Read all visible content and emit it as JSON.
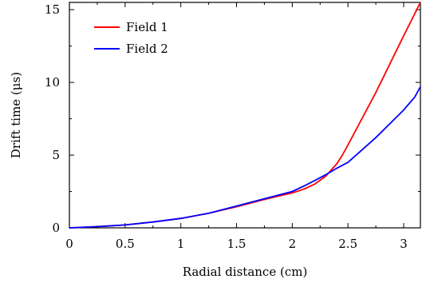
{
  "chart_data": {
    "type": "line",
    "xlabel": "Radial distance (cm)",
    "ylabel": "Drift time (μs)",
    "xlim": [
      0,
      3.15
    ],
    "ylim": [
      0,
      15.5
    ],
    "xticks": [
      "0",
      "0.5",
      "1",
      "1.5",
      "2",
      "2.5",
      "3"
    ],
    "yticks": [
      "0",
      "5",
      "10",
      "15"
    ],
    "xtick_values": [
      0,
      0.5,
      1,
      1.5,
      2,
      2.5,
      3
    ],
    "ytick_values": [
      0,
      5,
      10,
      15
    ],
    "grid": false,
    "legend_position": "top-left",
    "series": [
      {
        "name": "Field 1",
        "color": "#ff0000",
        "x": [
          0,
          0.25,
          0.5,
          0.75,
          1.0,
          1.25,
          1.5,
          1.75,
          2.0,
          2.1,
          2.2,
          2.3,
          2.4,
          2.45,
          2.5,
          2.75,
          3.0,
          3.15
        ],
        "y": [
          0,
          0.08,
          0.2,
          0.4,
          0.65,
          1.0,
          1.45,
          1.95,
          2.4,
          2.65,
          3.0,
          3.55,
          4.4,
          5.0,
          5.7,
          9.3,
          13.2,
          15.5
        ]
      },
      {
        "name": "Field 2",
        "color": "#0000ff",
        "x": [
          0,
          0.25,
          0.5,
          0.75,
          1.0,
          1.25,
          1.5,
          1.75,
          2.0,
          2.1,
          2.2,
          2.3,
          2.4,
          2.5,
          2.75,
          3.0,
          3.1,
          3.15
        ],
        "y": [
          0,
          0.08,
          0.2,
          0.4,
          0.65,
          1.0,
          1.5,
          2.0,
          2.5,
          2.85,
          3.25,
          3.65,
          4.1,
          4.5,
          6.2,
          8.1,
          9.0,
          9.7
        ]
      }
    ]
  }
}
